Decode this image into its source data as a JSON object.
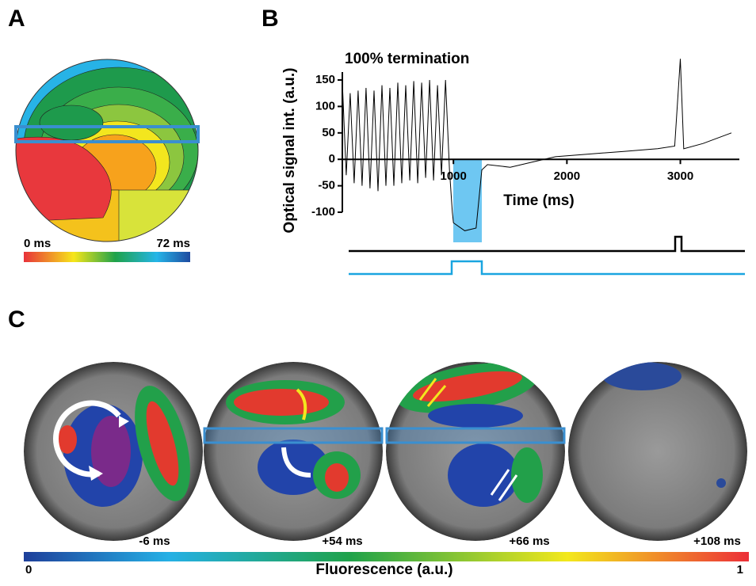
{
  "panels": {
    "a": "A",
    "b": "B",
    "c": "C"
  },
  "activation_map": {
    "min_label": "0 ms",
    "max_label": "72 ms"
  },
  "chart_data": {
    "type": "line",
    "title": "100% termination",
    "x_label": "Time (ms)",
    "y_label": "Optical signal int. (a.u.)",
    "color": "#000000",
    "x": [
      20,
      55,
      90,
      125,
      160,
      195,
      230,
      265,
      300,
      335,
      370,
      405,
      440,
      475,
      510,
      545,
      580,
      615,
      650,
      685,
      720,
      755,
      790,
      825,
      860,
      895,
      930,
      965,
      990,
      1000,
      1100,
      1200,
      1250,
      1300,
      1500,
      1700,
      1900,
      2200,
      2500,
      2800,
      2950,
      3000,
      3030,
      3200,
      3450
    ],
    "values": [
      150,
      -30,
      125,
      -45,
      130,
      -50,
      135,
      -55,
      130,
      -60,
      140,
      -50,
      135,
      -50,
      145,
      -45,
      140,
      -40,
      148,
      -45,
      145,
      -35,
      150,
      -40,
      140,
      -30,
      150,
      -20,
      -100,
      -120,
      -135,
      -130,
      -20,
      -10,
      -15,
      -5,
      5,
      10,
      15,
      20,
      25,
      190,
      20,
      30,
      50
    ],
    "xlim": [
      0,
      3520
    ],
    "xticks": [
      1000,
      2000,
      3000
    ],
    "ylim": [
      -100,
      165
    ],
    "yticks": [
      -100,
      -50,
      0,
      50,
      100,
      150
    ]
  },
  "frames": {
    "labels": [
      "-6 ms",
      "+54 ms",
      "+66 ms",
      "+108 ms"
    ]
  },
  "colorbar": {
    "min": "0",
    "max": "1",
    "label": "Fluorescence (a.u.)"
  }
}
